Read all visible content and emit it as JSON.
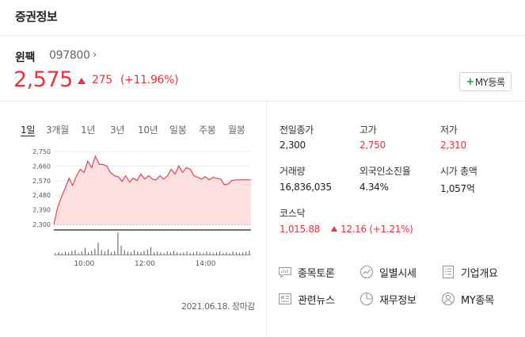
{
  "section": {
    "title": "증권정보"
  },
  "stock": {
    "name": "윈팩",
    "code": "097800",
    "code_chevron": "›",
    "price": "2,575",
    "change": "275",
    "change_pct": "(+11.96%)",
    "up_color": "#f0303a"
  },
  "my_button": {
    "plus": "+",
    "label": "MY등록"
  },
  "tabs": [
    "1일",
    "3개월",
    "1년",
    "3년",
    "10년",
    "일봉",
    "주봉",
    "월봉"
  ],
  "active_tab": "1일",
  "chart_data": {
    "type": "area",
    "x_ticks": [
      "10:00",
      "12:00",
      "14:00"
    ],
    "y_ticks": [
      "2,750",
      "2,660",
      "2,570",
      "2,480",
      "2,390",
      "2,300"
    ],
    "ylim": [
      2300,
      2750
    ],
    "baseline": 2300,
    "time_range": [
      "09:00",
      "15:30"
    ],
    "line_color": "#e8444c",
    "fill_color": "#fde1e1",
    "series": [
      {
        "values": [
          [
            "09:00",
            2300
          ],
          [
            "09:07",
            2400
          ],
          [
            "09:15",
            2470
          ],
          [
            "09:22",
            2520
          ],
          [
            "09:30",
            2585
          ],
          [
            "09:37",
            2540
          ],
          [
            "09:45",
            2600
          ],
          [
            "09:52",
            2640
          ],
          [
            "10:00",
            2620
          ],
          [
            "10:07",
            2690
          ],
          [
            "10:15",
            2650
          ],
          [
            "10:22",
            2720
          ],
          [
            "10:30",
            2670
          ],
          [
            "10:37",
            2670
          ],
          [
            "10:45",
            2660
          ],
          [
            "10:52",
            2620
          ],
          [
            "11:00",
            2600
          ],
          [
            "11:07",
            2595
          ],
          [
            "11:15",
            2565
          ],
          [
            "11:22",
            2600
          ],
          [
            "11:30",
            2560
          ],
          [
            "11:37",
            2585
          ],
          [
            "11:45",
            2570
          ],
          [
            "11:52",
            2610
          ],
          [
            "12:00",
            2580
          ],
          [
            "12:07",
            2600
          ],
          [
            "12:15",
            2580
          ],
          [
            "12:22",
            2575
          ],
          [
            "12:30",
            2600
          ],
          [
            "12:37",
            2580
          ],
          [
            "12:45",
            2600
          ],
          [
            "12:52",
            2640
          ],
          [
            "13:00",
            2610
          ],
          [
            "13:07",
            2660
          ],
          [
            "13:15",
            2620
          ],
          [
            "13:22",
            2650
          ],
          [
            "13:30",
            2640
          ],
          [
            "13:37",
            2600
          ],
          [
            "13:45",
            2590
          ],
          [
            "13:52",
            2580
          ],
          [
            "14:00",
            2595
          ],
          [
            "14:07",
            2575
          ],
          [
            "14:15",
            2590
          ],
          [
            "14:22",
            2585
          ],
          [
            "14:30",
            2580
          ],
          [
            "14:37",
            2545
          ],
          [
            "14:45",
            2550
          ],
          [
            "14:52",
            2570
          ],
          [
            "15:00",
            2575
          ],
          [
            "15:07",
            2575
          ],
          [
            "15:15",
            2575
          ],
          [
            "15:30",
            2575
          ]
        ]
      }
    ],
    "volume": [
      2,
      3,
      2,
      4,
      3,
      5,
      6,
      2,
      4,
      9,
      3,
      5,
      8,
      16,
      6,
      4,
      7,
      3,
      5,
      30,
      12,
      6,
      4,
      3,
      6,
      4,
      3,
      5,
      7,
      10,
      3,
      4,
      3,
      2,
      4,
      3,
      5,
      3,
      2,
      3,
      4,
      2,
      3,
      4,
      3,
      2,
      4,
      3,
      2,
      3,
      4,
      2,
      3,
      2,
      4,
      3,
      2,
      3,
      4,
      5
    ]
  },
  "chart_date": "2021.06.18. 장마감",
  "info": {
    "prev_close": {
      "label": "전일종가",
      "value": "2,300"
    },
    "high": {
      "label": "고가",
      "value": "2,750"
    },
    "low": {
      "label": "저가",
      "value": "2,310"
    },
    "volume": {
      "label": "거래량",
      "value": "16,836,035"
    },
    "foreign": {
      "label": "외국인소진율",
      "value": "4.34%"
    },
    "market_cap": {
      "label": "시가 총액",
      "value": "1,057억"
    },
    "index": {
      "label": "코스닥",
      "value": "1,015.88",
      "change": "12.16 (+1.21%)"
    }
  },
  "links": [
    {
      "label": "종목토론",
      "icon": "discussion-icon"
    },
    {
      "label": "일별시세",
      "icon": "daily-chart-icon"
    },
    {
      "label": "기업개요",
      "icon": "company-overview-icon"
    },
    {
      "label": "관련뉴스",
      "icon": "news-icon"
    },
    {
      "label": "재무정보",
      "icon": "pie-chart-icon"
    },
    {
      "label": "MY종목",
      "icon": "user-icon"
    }
  ]
}
